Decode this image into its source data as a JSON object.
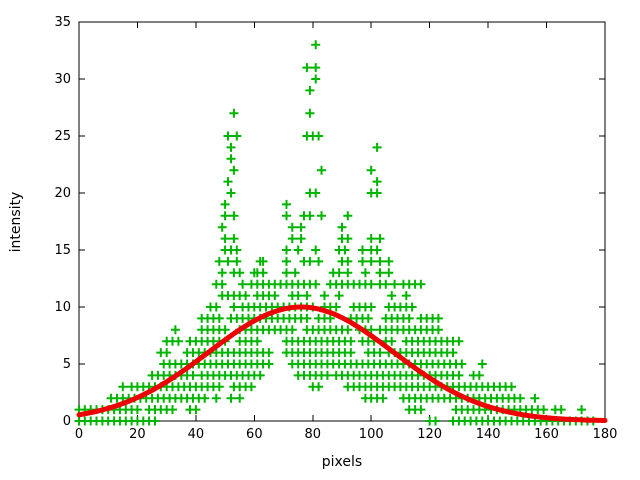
{
  "chart_data": {
    "type": "scatter",
    "title": "",
    "xlabel": "pixels",
    "ylabel": "intensity",
    "xlim": [
      0,
      180
    ],
    "ylim": [
      0,
      35
    ],
    "x_ticks": [
      0,
      20,
      40,
      60,
      80,
      100,
      120,
      140,
      160,
      180
    ],
    "y_ticks": [
      0,
      5,
      10,
      15,
      20,
      25,
      30,
      35
    ],
    "grid": false,
    "legend": "none",
    "series": [
      {
        "name": "measured intensity samples",
        "type": "scatter",
        "marker": "plus",
        "color": "#00b400",
        "run_step": 2,
        "rows": [
          {
            "y": 0,
            "x": [
              [
                0,
                26
              ],
              [
                120,
                122
              ],
              [
                128,
                176
              ]
            ]
          },
          {
            "y": 1,
            "x": [
              [
                0,
                21
              ],
              [
                24,
                33
              ],
              38,
              40,
              [
                113,
                117
              ],
              [
                129,
                160
              ],
              163,
              165,
              172
            ]
          },
          {
            "y": 2,
            "x": [
              [
                11,
                44
              ],
              47,
              52,
              55,
              [
                98,
                104
              ],
              [
                111,
                152
              ],
              156
            ]
          },
          {
            "y": 3,
            "x": [
              15,
              [
                18,
                48
              ],
              [
                53,
                59
              ],
              80,
              82,
              [
                92,
                148
              ]
            ]
          },
          {
            "y": 4,
            "x": [
              25,
              27,
              [
                29,
                39
              ],
              [
                42,
                50
              ],
              [
                52,
                62
              ],
              [
                75,
                85
              ],
              [
                88,
                131
              ],
              135,
              137
            ]
          },
          {
            "y": 5,
            "x": [
              [
                29,
                49
              ],
              [
                51,
                65
              ],
              [
                73,
                95
              ],
              [
                97,
                103
              ],
              [
                105,
                131
              ],
              138
            ]
          },
          {
            "y": 6,
            "x": [
              28,
              30,
              37,
              [
                39,
                66
              ],
              [
                71,
                94
              ],
              [
                99,
                103
              ],
              [
                106,
                128
              ]
            ]
          },
          {
            "y": 7,
            "x": [
              [
                30,
                35
              ],
              38,
              [
                40,
                51
              ],
              [
                55,
                62
              ],
              [
                71,
                94
              ],
              [
                97,
                101
              ],
              [
                105,
                108
              ],
              [
                112,
                130
              ]
            ]
          },
          {
            "y": 8,
            "x": [
              33,
              [
                42,
                51
              ],
              [
                55,
                73
              ],
              [
                78,
                92
              ],
              [
                96,
                100
              ],
              [
                103,
                123
              ]
            ]
          },
          {
            "y": 9,
            "x": [
              [
                42,
                49
              ],
              [
                52,
                78
              ],
              [
                82,
                86
              ],
              [
                93,
                99
              ],
              [
                105,
                114
              ],
              [
                117,
                124
              ]
            ]
          },
          {
            "y": 10,
            "x": [
              45,
              47,
              53,
              [
                56,
                81
              ],
              [
                84,
                89
              ],
              [
                94,
                100
              ],
              [
                106,
                114
              ]
            ]
          },
          {
            "y": 11,
            "x": [
              [
                49,
                57
              ],
              [
                61,
                68
              ],
              73,
              75,
              78,
              84,
              89,
              107,
              112
            ]
          },
          {
            "y": 12,
            "x": [
              47,
              49,
              56,
              [
                59,
                82
              ],
              [
                86,
                100
              ],
              103,
              105,
              108,
              [
                111,
                117
              ]
            ]
          },
          {
            "y": 13,
            "x": [
              49,
              53,
              55,
              60,
              61,
              63,
              71,
              74,
              87,
              89,
              92,
              98,
              103,
              106
            ]
          },
          {
            "y": 14,
            "x": [
              48,
              51,
              54,
              62,
              63,
              71,
              77,
              79,
              82,
              90,
              92,
              97,
              100,
              103,
              106
            ]
          },
          {
            "y": 15,
            "x": [
              50,
              52,
              54,
              71,
              75,
              81,
              89,
              91,
              97,
              100,
              102
            ]
          },
          {
            "y": 16,
            "x": [
              50,
              53,
              73,
              76,
              90,
              92,
              100,
              103
            ]
          },
          {
            "y": 17,
            "x": [
              49,
              73,
              76,
              90
            ]
          },
          {
            "y": 18,
            "x": [
              50,
              53,
              71,
              77,
              79,
              83,
              92
            ]
          },
          {
            "y": 19,
            "x": [
              50,
              71
            ]
          },
          {
            "y": 20,
            "x": [
              52,
              79,
              81,
              100,
              102
            ]
          },
          {
            "y": 21,
            "x": [
              51,
              102
            ]
          },
          {
            "y": 22,
            "x": [
              53,
              83,
              100
            ]
          },
          {
            "y": 23,
            "x": [
              52
            ]
          },
          {
            "y": 24,
            "x": [
              52,
              102
            ]
          },
          {
            "y": 25,
            "x": [
              51,
              54,
              78,
              80,
              82
            ]
          },
          {
            "y": 27,
            "x": [
              53,
              79
            ]
          },
          {
            "y": 29,
            "x": [
              79
            ]
          },
          {
            "y": 30,
            "x": [
              81
            ]
          },
          {
            "y": 31,
            "x": [
              78,
              81
            ]
          },
          {
            "y": 33,
            "x": [
              81
            ]
          }
        ]
      },
      {
        "name": "gaussian fit curve",
        "type": "line",
        "color": "#ef0000",
        "model": "gaussian",
        "amplitude": 10,
        "center": 76,
        "sigma": 31.5
      }
    ],
    "axis_color": "#000000",
    "tick_label_color": "#000000"
  }
}
